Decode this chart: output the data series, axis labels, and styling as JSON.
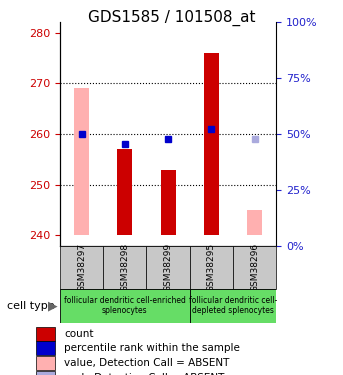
{
  "title": "GDS1585 / 101508_at",
  "samples": [
    "GSM38297",
    "GSM38298",
    "GSM38299",
    "GSM38295",
    "GSM38296"
  ],
  "bar_values": [
    269,
    257,
    253,
    276,
    245
  ],
  "bar_absent": [
    true,
    false,
    false,
    false,
    true
  ],
  "rank_values": [
    260,
    258,
    259,
    261,
    259
  ],
  "rank_absent": [
    false,
    false,
    false,
    false,
    true
  ],
  "ylim_left": [
    238,
    282
  ],
  "yticks_left": [
    240,
    250,
    260,
    270,
    280
  ],
  "ylim_right": [
    0,
    100
  ],
  "yticks_right": [
    0,
    25,
    50,
    75,
    100
  ],
  "color_bar_normal": "#cc0000",
  "color_bar_absent": "#ffb0b0",
  "color_rank_normal": "#0000cc",
  "color_rank_absent": "#aaaadd",
  "bar_bottom": 240,
  "group1_label": "follicular dendritic cell-enriched\nsplenocytes",
  "group2_label": "follicular dendritic cell-\ndepleted splenocytes",
  "group_color": "#66dd66",
  "legend_items": [
    {
      "label": "count",
      "color": "#cc0000"
    },
    {
      "label": "percentile rank within the sample",
      "color": "#0000cc"
    },
    {
      "label": "value, Detection Call = ABSENT",
      "color": "#ffb0b0"
    },
    {
      "label": "rank, Detection Call = ABSENT",
      "color": "#aaaadd"
    }
  ],
  "tick_label_color_left": "#cc0000",
  "tick_label_color_right": "#2222cc",
  "xlabel_bg_color": "#c8c8c8",
  "bar_width": 0.35,
  "title_fontsize": 11
}
